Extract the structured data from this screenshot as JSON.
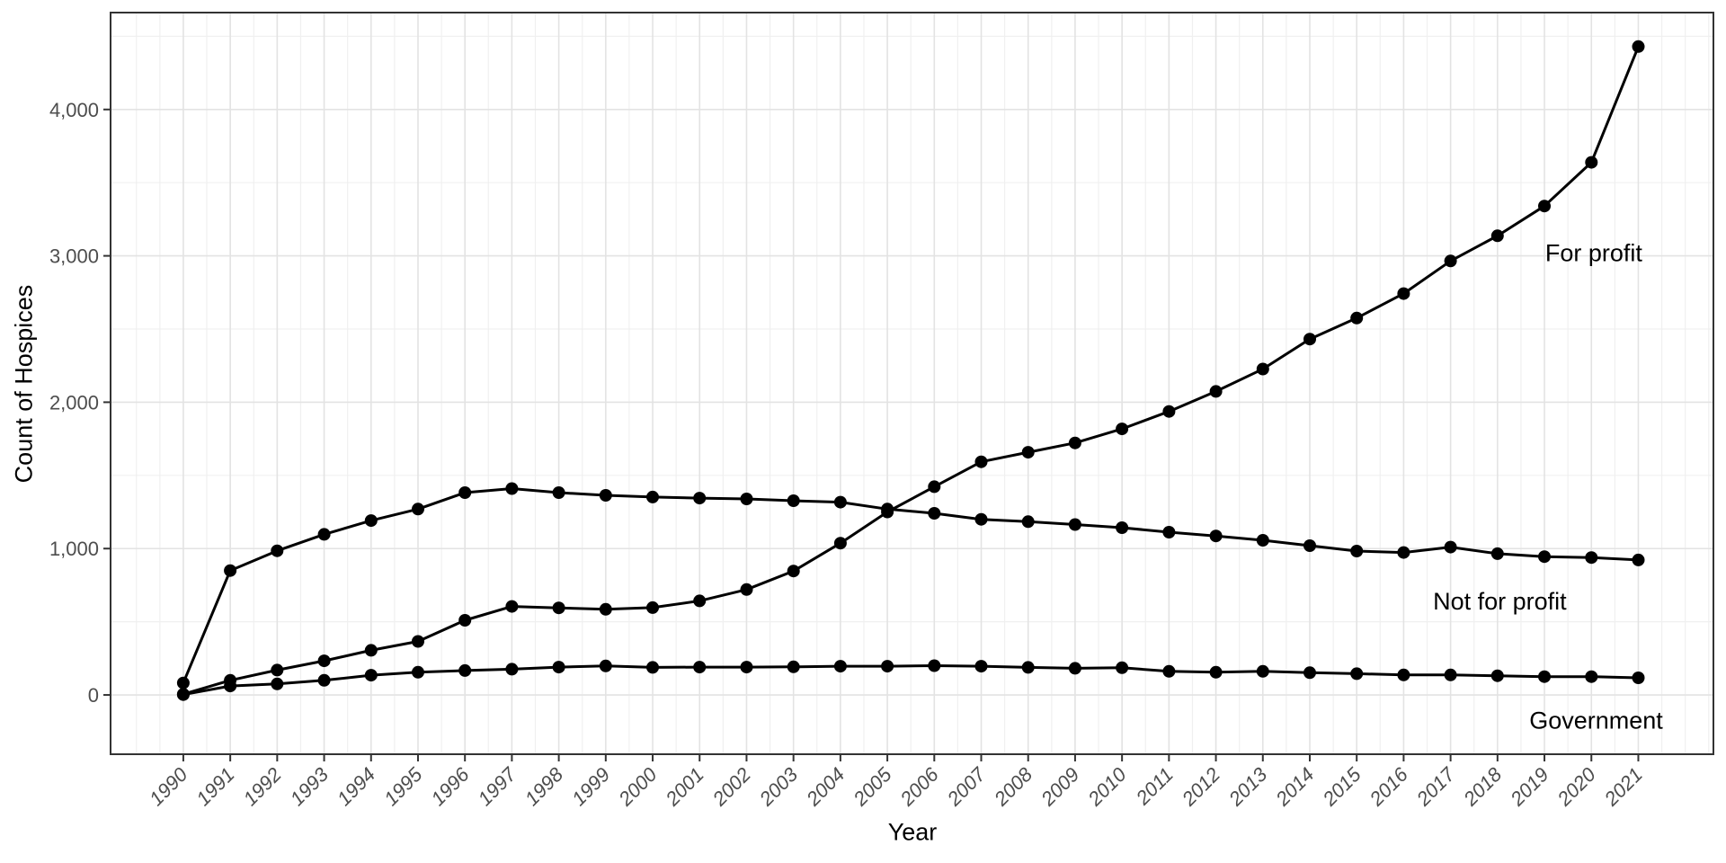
{
  "chart_data": {
    "type": "line",
    "title": "",
    "xlabel": "Year",
    "ylabel": "Count of Hospices",
    "x": [
      1990,
      1991,
      1992,
      1993,
      1994,
      1995,
      1996,
      1997,
      1998,
      1999,
      2000,
      2001,
      2002,
      2003,
      2004,
      2005,
      2006,
      2007,
      2008,
      2009,
      2010,
      2011,
      2012,
      2013,
      2014,
      2015,
      2016,
      2017,
      2018,
      2019,
      2020,
      2021
    ],
    "x_tick_labels": [
      "1990",
      "1991",
      "1992",
      "1993",
      "1994",
      "1995",
      "1996",
      "1997",
      "1998",
      "1999",
      "2000",
      "2001",
      "2002",
      "2003",
      "2004",
      "2005",
      "2006",
      "2007",
      "2008",
      "2009",
      "2010",
      "2011",
      "2012",
      "2013",
      "2014",
      "2015",
      "2016",
      "2017",
      "2018",
      "2019",
      "2020",
      "2021"
    ],
    "y_ticks": [
      0,
      1000,
      2000,
      3000,
      4000
    ],
    "y_tick_labels": [
      "0",
      "1,000",
      "2,000",
      "3,000",
      "4,000"
    ],
    "y_minor_ticks": [
      500,
      1500,
      2500,
      3500,
      4500
    ],
    "xlim": [
      1988.45,
      2022.6
    ],
    "ylim": [
      -405,
      4662
    ],
    "grid": true,
    "legend_position": "none",
    "series": [
      {
        "name": "For profit",
        "values": [
          5,
          100,
          170,
          233,
          305,
          366,
          510,
          605,
          595,
          585,
          597,
          643,
          720,
          847,
          1037,
          1250,
          1423,
          1593,
          1658,
          1722,
          1818,
          1937,
          2074,
          2227,
          2431,
          2575,
          2742,
          2965,
          3137,
          3340,
          3639,
          4430
        ]
      },
      {
        "name": "Not for profit",
        "values": [
          82,
          850,
          985,
          1097,
          1191,
          1270,
          1382,
          1410,
          1382,
          1364,
          1352,
          1345,
          1339,
          1327,
          1317,
          1270,
          1241,
          1200,
          1184,
          1164,
          1143,
          1112,
          1086,
          1057,
          1020,
          983,
          973,
          1010,
          965,
          945,
          939,
          922
        ]
      },
      {
        "name": "Government",
        "values": [
          2,
          61,
          75,
          100,
          135,
          155,
          167,
          176,
          190,
          198,
          188,
          190,
          190,
          192,
          196,
          196,
          200,
          196,
          188,
          182,
          186,
          161,
          155,
          161,
          152,
          145,
          137,
          137,
          131,
          125,
          125,
          117
        ]
      }
    ],
    "annotations": [
      {
        "text": "For profit",
        "year": 2020.05,
        "value": 3020
      },
      {
        "text": "Not for profit",
        "year": 2018.05,
        "value": 640
      },
      {
        "text": "Government",
        "year": 2020.1,
        "value": -175
      }
    ],
    "colors": {
      "line": "#000000",
      "point": "#000000",
      "grid_major": "#E3E3E3",
      "grid_minor": "#F0F0F0",
      "panel_border": "#333333",
      "tick_mark": "#333333",
      "axis_text": "#4D4D4D",
      "axis_title_text": "#000000",
      "annotation_text": "#000000",
      "background": "#FFFFFF"
    }
  }
}
